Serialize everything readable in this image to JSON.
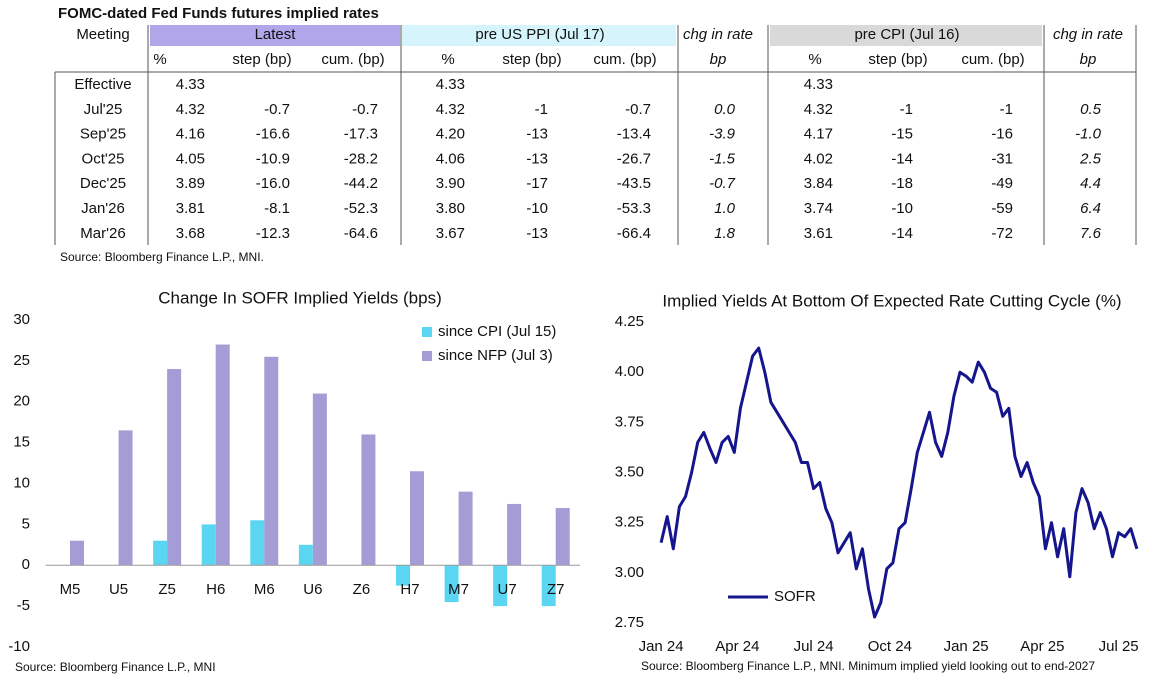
{
  "table": {
    "title": "FOMC-dated Fed Funds futures implied rates",
    "header": [
      "Meeting",
      "Latest",
      "pre US PPI (Jul 17)",
      "chg in rate",
      "pre CPI (Jul 16)",
      "chg in rate"
    ],
    "subheader": [
      "%",
      "step (bp)",
      "cum. (bp)",
      "%",
      "step (bp)",
      "cum. (bp)",
      "bp",
      "%",
      "step (bp)",
      "cum. (bp)",
      "bp"
    ],
    "rows": [
      {
        "meeting": "Effective",
        "latest": [
          "4.33"
        ],
        "pre_ppi": [
          "4.33"
        ],
        "pre_cpi": [
          "4.33"
        ]
      },
      {
        "meeting": "Jul'25",
        "latest": [
          "4.32",
          "-0.7",
          "-0.7"
        ],
        "pre_ppi": [
          "4.32",
          "-1",
          "-0.7"
        ],
        "chg_ppi": "0.0",
        "pre_cpi": [
          "4.32",
          "-1",
          "-1"
        ],
        "chg_cpi": "0.5"
      },
      {
        "meeting": "Sep'25",
        "latest": [
          "4.16",
          "-16.6",
          "-17.3"
        ],
        "pre_ppi": [
          "4.20",
          "-13",
          "-13.4"
        ],
        "chg_ppi": "-3.9",
        "pre_cpi": [
          "4.17",
          "-15",
          "-16"
        ],
        "chg_cpi": "-1.0"
      },
      {
        "meeting": "Oct'25",
        "latest": [
          "4.05",
          "-10.9",
          "-28.2"
        ],
        "pre_ppi": [
          "4.06",
          "-13",
          "-26.7"
        ],
        "chg_ppi": "-1.5",
        "pre_cpi": [
          "4.02",
          "-14",
          "-31"
        ],
        "chg_cpi": "2.5"
      },
      {
        "meeting": "Dec'25",
        "latest": [
          "3.89",
          "-16.0",
          "-44.2"
        ],
        "pre_ppi": [
          "3.90",
          "-17",
          "-43.5"
        ],
        "chg_ppi": "-0.7",
        "pre_cpi": [
          "3.84",
          "-18",
          "-49"
        ],
        "chg_cpi": "4.4"
      },
      {
        "meeting": "Jan'26",
        "latest": [
          "3.81",
          "-8.1",
          "-52.3"
        ],
        "pre_ppi": [
          "3.80",
          "-10",
          "-53.3"
        ],
        "chg_ppi": "1.0",
        "pre_cpi": [
          "3.74",
          "-10",
          "-59"
        ],
        "chg_cpi": "6.4"
      },
      {
        "meeting": "Mar'26",
        "latest": [
          "3.68",
          "-12.3",
          "-64.6"
        ],
        "pre_ppi": [
          "3.67",
          "-13",
          "-66.4"
        ],
        "chg_ppi": "1.8",
        "pre_cpi": [
          "3.61",
          "-14",
          "-72"
        ],
        "chg_cpi": "7.6"
      }
    ],
    "source": "Source: Bloomberg Finance L.P., MNI."
  },
  "chart_data": [
    {
      "type": "bar",
      "title": "Change In SOFR Implied Yields (bps)",
      "categories": [
        "M5",
        "U5",
        "Z5",
        "H6",
        "M6",
        "U6",
        "Z6",
        "H7",
        "M7",
        "U7",
        "Z7"
      ],
      "series": [
        {
          "name": "since CPI (Jul 15)",
          "color": "#5ad6f2",
          "values": [
            0,
            0,
            3,
            5,
            5.5,
            2.5,
            0,
            -2.5,
            -4.5,
            -5,
            -5
          ]
        },
        {
          "name": "since NFP (Jul 3)",
          "color": "#a49cd4",
          "values": [
            3,
            16.5,
            24,
            27,
            25.5,
            21,
            16,
            11.5,
            9,
            7.5,
            7
          ]
        }
      ],
      "ylim": [
        -10,
        30
      ],
      "yticks": [
        -10,
        -5,
        0,
        5,
        10,
        15,
        20,
        25,
        30
      ],
      "legend": "upper right",
      "grid": false,
      "source": "Source: Bloomberg Finance L.P., MNI"
    },
    {
      "type": "line",
      "title": "Implied Yields At Bottom Of Expected Rate Cutting Cycle (%)",
      "x": [
        2024,
        2024.02,
        2024.04,
        2024.06,
        2024.08,
        2024.1,
        2024.12,
        2024.14,
        2024.16,
        2024.18,
        2024.2,
        2024.22,
        2024.24,
        2024.26,
        2024.28,
        2024.3,
        2024.32,
        2024.34,
        2024.36,
        2024.38,
        2024.4,
        2024.42,
        2024.44,
        2024.46,
        2024.48,
        2024.5,
        2024.52,
        2024.54,
        2024.56,
        2024.58,
        2024.6,
        2024.62,
        2024.64,
        2024.66,
        2024.68,
        2024.7,
        2024.72,
        2024.74,
        2024.76,
        2024.78,
        2024.8,
        2024.82,
        2024.84,
        2024.86,
        2024.88,
        2024.9,
        2024.92,
        2024.94,
        2024.96,
        2024.98,
        2025,
        2025.02,
        2025.04,
        2025.06,
        2025.08,
        2025.1,
        2025.12,
        2025.14,
        2025.16,
        2025.18,
        2025.2,
        2025.22,
        2025.24,
        2025.26,
        2025.28,
        2025.3,
        2025.32,
        2025.34,
        2025.36,
        2025.38,
        2025.4,
        2025.42,
        2025.44,
        2025.46,
        2025.48,
        2025.5,
        2025.52,
        2025.54,
        2025.56
      ],
      "series": [
        {
          "name": "SOFR",
          "color": "#15168c",
          "values": [
            3.15,
            3.28,
            3.12,
            3.33,
            3.38,
            3.5,
            3.65,
            3.7,
            3.62,
            3.55,
            3.65,
            3.68,
            3.6,
            3.82,
            3.95,
            4.08,
            4.12,
            4.0,
            3.85,
            3.8,
            3.75,
            3.7,
            3.65,
            3.55,
            3.55,
            3.42,
            3.45,
            3.32,
            3.25,
            3.1,
            3.15,
            3.2,
            3.02,
            3.12,
            2.92,
            2.78,
            2.85,
            3.02,
            3.05,
            3.22,
            3.25,
            3.42,
            3.6,
            3.7,
            3.8,
            3.65,
            3.58,
            3.7,
            3.88,
            4.0,
            3.98,
            3.95,
            4.05,
            4.0,
            3.92,
            3.9,
            3.78,
            3.82,
            3.58,
            3.48,
            3.55,
            3.45,
            3.38,
            3.12,
            3.25,
            3.08,
            3.22,
            2.98,
            3.3,
            3.42,
            3.35,
            3.22,
            3.3,
            3.22,
            3.08,
            3.2,
            3.18,
            3.22,
            3.12
          ]
        }
      ],
      "xlim": [
        2023.98,
        2025.57
      ],
      "xticks": [
        {
          "value": 2024,
          "label": "Jan 24"
        },
        {
          "value": 2024.25,
          "label": "Apr 24"
        },
        {
          "value": 2024.5,
          "label": "Jul 24"
        },
        {
          "value": 2024.75,
          "label": "Oct 24"
        },
        {
          "value": 2025,
          "label": "Jan 25"
        },
        {
          "value": 2025.25,
          "label": "Apr 25"
        },
        {
          "value": 2025.5,
          "label": "Jul 25"
        }
      ],
      "ylim": [
        2.75,
        4.25
      ],
      "yticks": [
        2.75,
        {
          "value": 3,
          "label": "3.00"
        },
        3.25,
        {
          "value": 3.5,
          "label": "3.50"
        },
        3.75,
        {
          "value": 4,
          "label": "4.00"
        },
        4.25
      ],
      "legend": "lower left",
      "grid": false,
      "source": "Source: Bloomberg Finance L.P., MNI. Minimum implied yield looking out to end-2027"
    }
  ]
}
